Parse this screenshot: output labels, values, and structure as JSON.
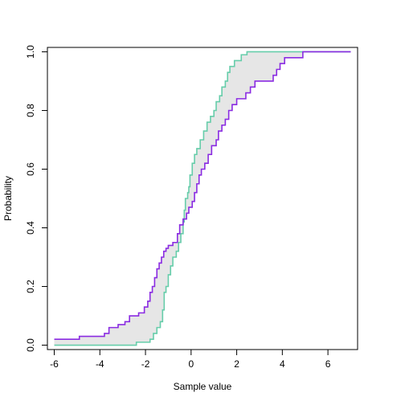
{
  "chart_data": {
    "type": "line",
    "title": "",
    "xlabel": "Sample value",
    "ylabel": "Probability",
    "xlim": [
      -6.3,
      7.3
    ],
    "ylim": [
      -0.015,
      1.015
    ],
    "x_ticks": [
      -6,
      -4,
      -2,
      0,
      2,
      4,
      6
    ],
    "y_ticks": [
      0.0,
      0.2,
      0.4,
      0.6,
      0.8,
      1.0
    ],
    "x_tick_labels": [
      "-6",
      "-4",
      "-2",
      "0",
      "2",
      "4",
      "6"
    ],
    "y_tick_labels": [
      "0.0",
      "0.2",
      "0.4",
      "0.6",
      "0.8",
      "1.0"
    ],
    "grid": false,
    "band_between_series": true,
    "band_color": "#e6e6e6",
    "series": [
      {
        "color": "#66cdaa",
        "step": true,
        "points": [
          [
            -6.0,
            0.0
          ],
          [
            -2.4,
            0.01
          ],
          [
            -1.8,
            0.02
          ],
          [
            -1.65,
            0.04
          ],
          [
            -1.5,
            0.06
          ],
          [
            -1.35,
            0.08
          ],
          [
            -1.25,
            0.12
          ],
          [
            -1.18,
            0.18
          ],
          [
            -1.1,
            0.2
          ],
          [
            -1.0,
            0.24
          ],
          [
            -0.9,
            0.27
          ],
          [
            -0.8,
            0.3
          ],
          [
            -0.65,
            0.32
          ],
          [
            -0.55,
            0.35
          ],
          [
            -0.45,
            0.38
          ],
          [
            -0.35,
            0.42
          ],
          [
            -0.3,
            0.46
          ],
          [
            -0.25,
            0.5
          ],
          [
            -0.15,
            0.52
          ],
          [
            -0.1,
            0.54
          ],
          [
            -0.05,
            0.58
          ],
          [
            0.05,
            0.62
          ],
          [
            0.15,
            0.65
          ],
          [
            0.25,
            0.67
          ],
          [
            0.4,
            0.7
          ],
          [
            0.55,
            0.73
          ],
          [
            0.7,
            0.76
          ],
          [
            0.85,
            0.78
          ],
          [
            1.0,
            0.8
          ],
          [
            1.1,
            0.83
          ],
          [
            1.25,
            0.85
          ],
          [
            1.35,
            0.88
          ],
          [
            1.5,
            0.9
          ],
          [
            1.6,
            0.93
          ],
          [
            1.7,
            0.95
          ],
          [
            1.9,
            0.97
          ],
          [
            2.2,
            0.99
          ],
          [
            2.45,
            1.0
          ],
          [
            7.0,
            1.0
          ]
        ]
      },
      {
        "color": "#8a2be2",
        "step": true,
        "points": [
          [
            -6.0,
            0.02
          ],
          [
            -4.9,
            0.03
          ],
          [
            -3.8,
            0.04
          ],
          [
            -3.6,
            0.06
          ],
          [
            -3.2,
            0.07
          ],
          [
            -2.9,
            0.08
          ],
          [
            -2.7,
            0.1
          ],
          [
            -2.3,
            0.11
          ],
          [
            -2.05,
            0.13
          ],
          [
            -1.9,
            0.15
          ],
          [
            -1.8,
            0.18
          ],
          [
            -1.7,
            0.2
          ],
          [
            -1.6,
            0.23
          ],
          [
            -1.5,
            0.26
          ],
          [
            -1.4,
            0.28
          ],
          [
            -1.3,
            0.3
          ],
          [
            -1.2,
            0.32
          ],
          [
            -1.1,
            0.33
          ],
          [
            -1.0,
            0.34
          ],
          [
            -0.8,
            0.35
          ],
          [
            -0.6,
            0.38
          ],
          [
            -0.5,
            0.41
          ],
          [
            -0.35,
            0.43
          ],
          [
            -0.2,
            0.45
          ],
          [
            -0.1,
            0.47
          ],
          [
            0.05,
            0.49
          ],
          [
            0.15,
            0.52
          ],
          [
            0.25,
            0.55
          ],
          [
            0.35,
            0.58
          ],
          [
            0.45,
            0.6
          ],
          [
            0.6,
            0.62
          ],
          [
            0.75,
            0.65
          ],
          [
            0.9,
            0.68
          ],
          [
            1.1,
            0.7
          ],
          [
            1.2,
            0.73
          ],
          [
            1.35,
            0.75
          ],
          [
            1.5,
            0.77
          ],
          [
            1.65,
            0.8
          ],
          [
            1.8,
            0.82
          ],
          [
            2.0,
            0.84
          ],
          [
            2.4,
            0.86
          ],
          [
            2.6,
            0.88
          ],
          [
            2.8,
            0.9
          ],
          [
            3.6,
            0.92
          ],
          [
            3.75,
            0.94
          ],
          [
            3.9,
            0.96
          ],
          [
            4.1,
            0.98
          ],
          [
            4.9,
            1.0
          ],
          [
            7.0,
            1.0
          ]
        ]
      }
    ]
  }
}
